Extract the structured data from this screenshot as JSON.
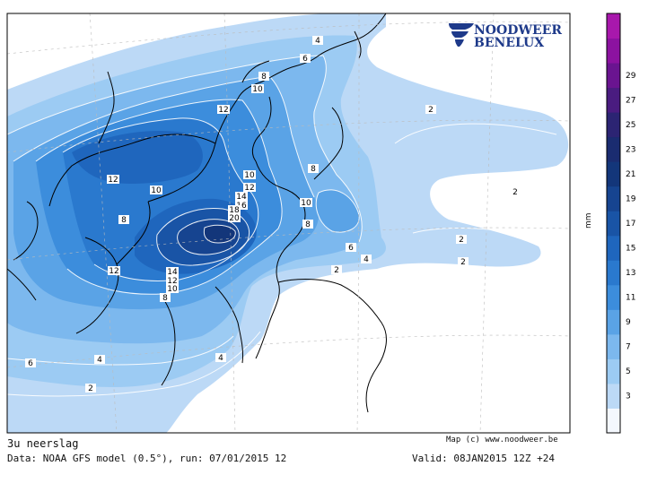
{
  "logo": {
    "line1": "NOODWEER",
    "line2": "BENELUX"
  },
  "footer": {
    "title": "3u neerslag",
    "data_line": "Data: NOAA GFS model (0.5°), run: 07/01/2015 12",
    "credit": "Map (c) www.noodweer.be",
    "valid": "Valid: 08JAN2015 12Z +24"
  },
  "colorbar": {
    "unit": "mm",
    "ticks": [
      "3",
      "5",
      "7",
      "9",
      "11",
      "13",
      "15",
      "17",
      "19",
      "21",
      "23",
      "25",
      "27",
      "29"
    ],
    "colors": [
      "#f4f8fe",
      "#bcd9f6",
      "#9ccbf3",
      "#7cb8ee",
      "#5aa3e6",
      "#3c8ddc",
      "#2a79ce",
      "#1f66bd",
      "#1954a6",
      "#164490",
      "#13367a",
      "#1a2c70",
      "#2c2473",
      "#4a1c80",
      "#6a1490",
      "#8c12a0",
      "#a818ac"
    ]
  },
  "contour_labels": [
    "4",
    "6",
    "8",
    "10",
    "12",
    "2",
    "8",
    "12",
    "10",
    "14",
    "16",
    "20",
    "18",
    "10",
    "12",
    "10",
    "8",
    "6",
    "4",
    "2",
    "2",
    "2",
    "2",
    "14",
    "12",
    "10",
    "8",
    "12",
    "6",
    "4",
    "4",
    "2",
    "8"
  ],
  "colors": {
    "sea": "#ffffff",
    "border": "#000000",
    "contour": "#ffffff",
    "logo_blue": "#1e3a8a"
  }
}
